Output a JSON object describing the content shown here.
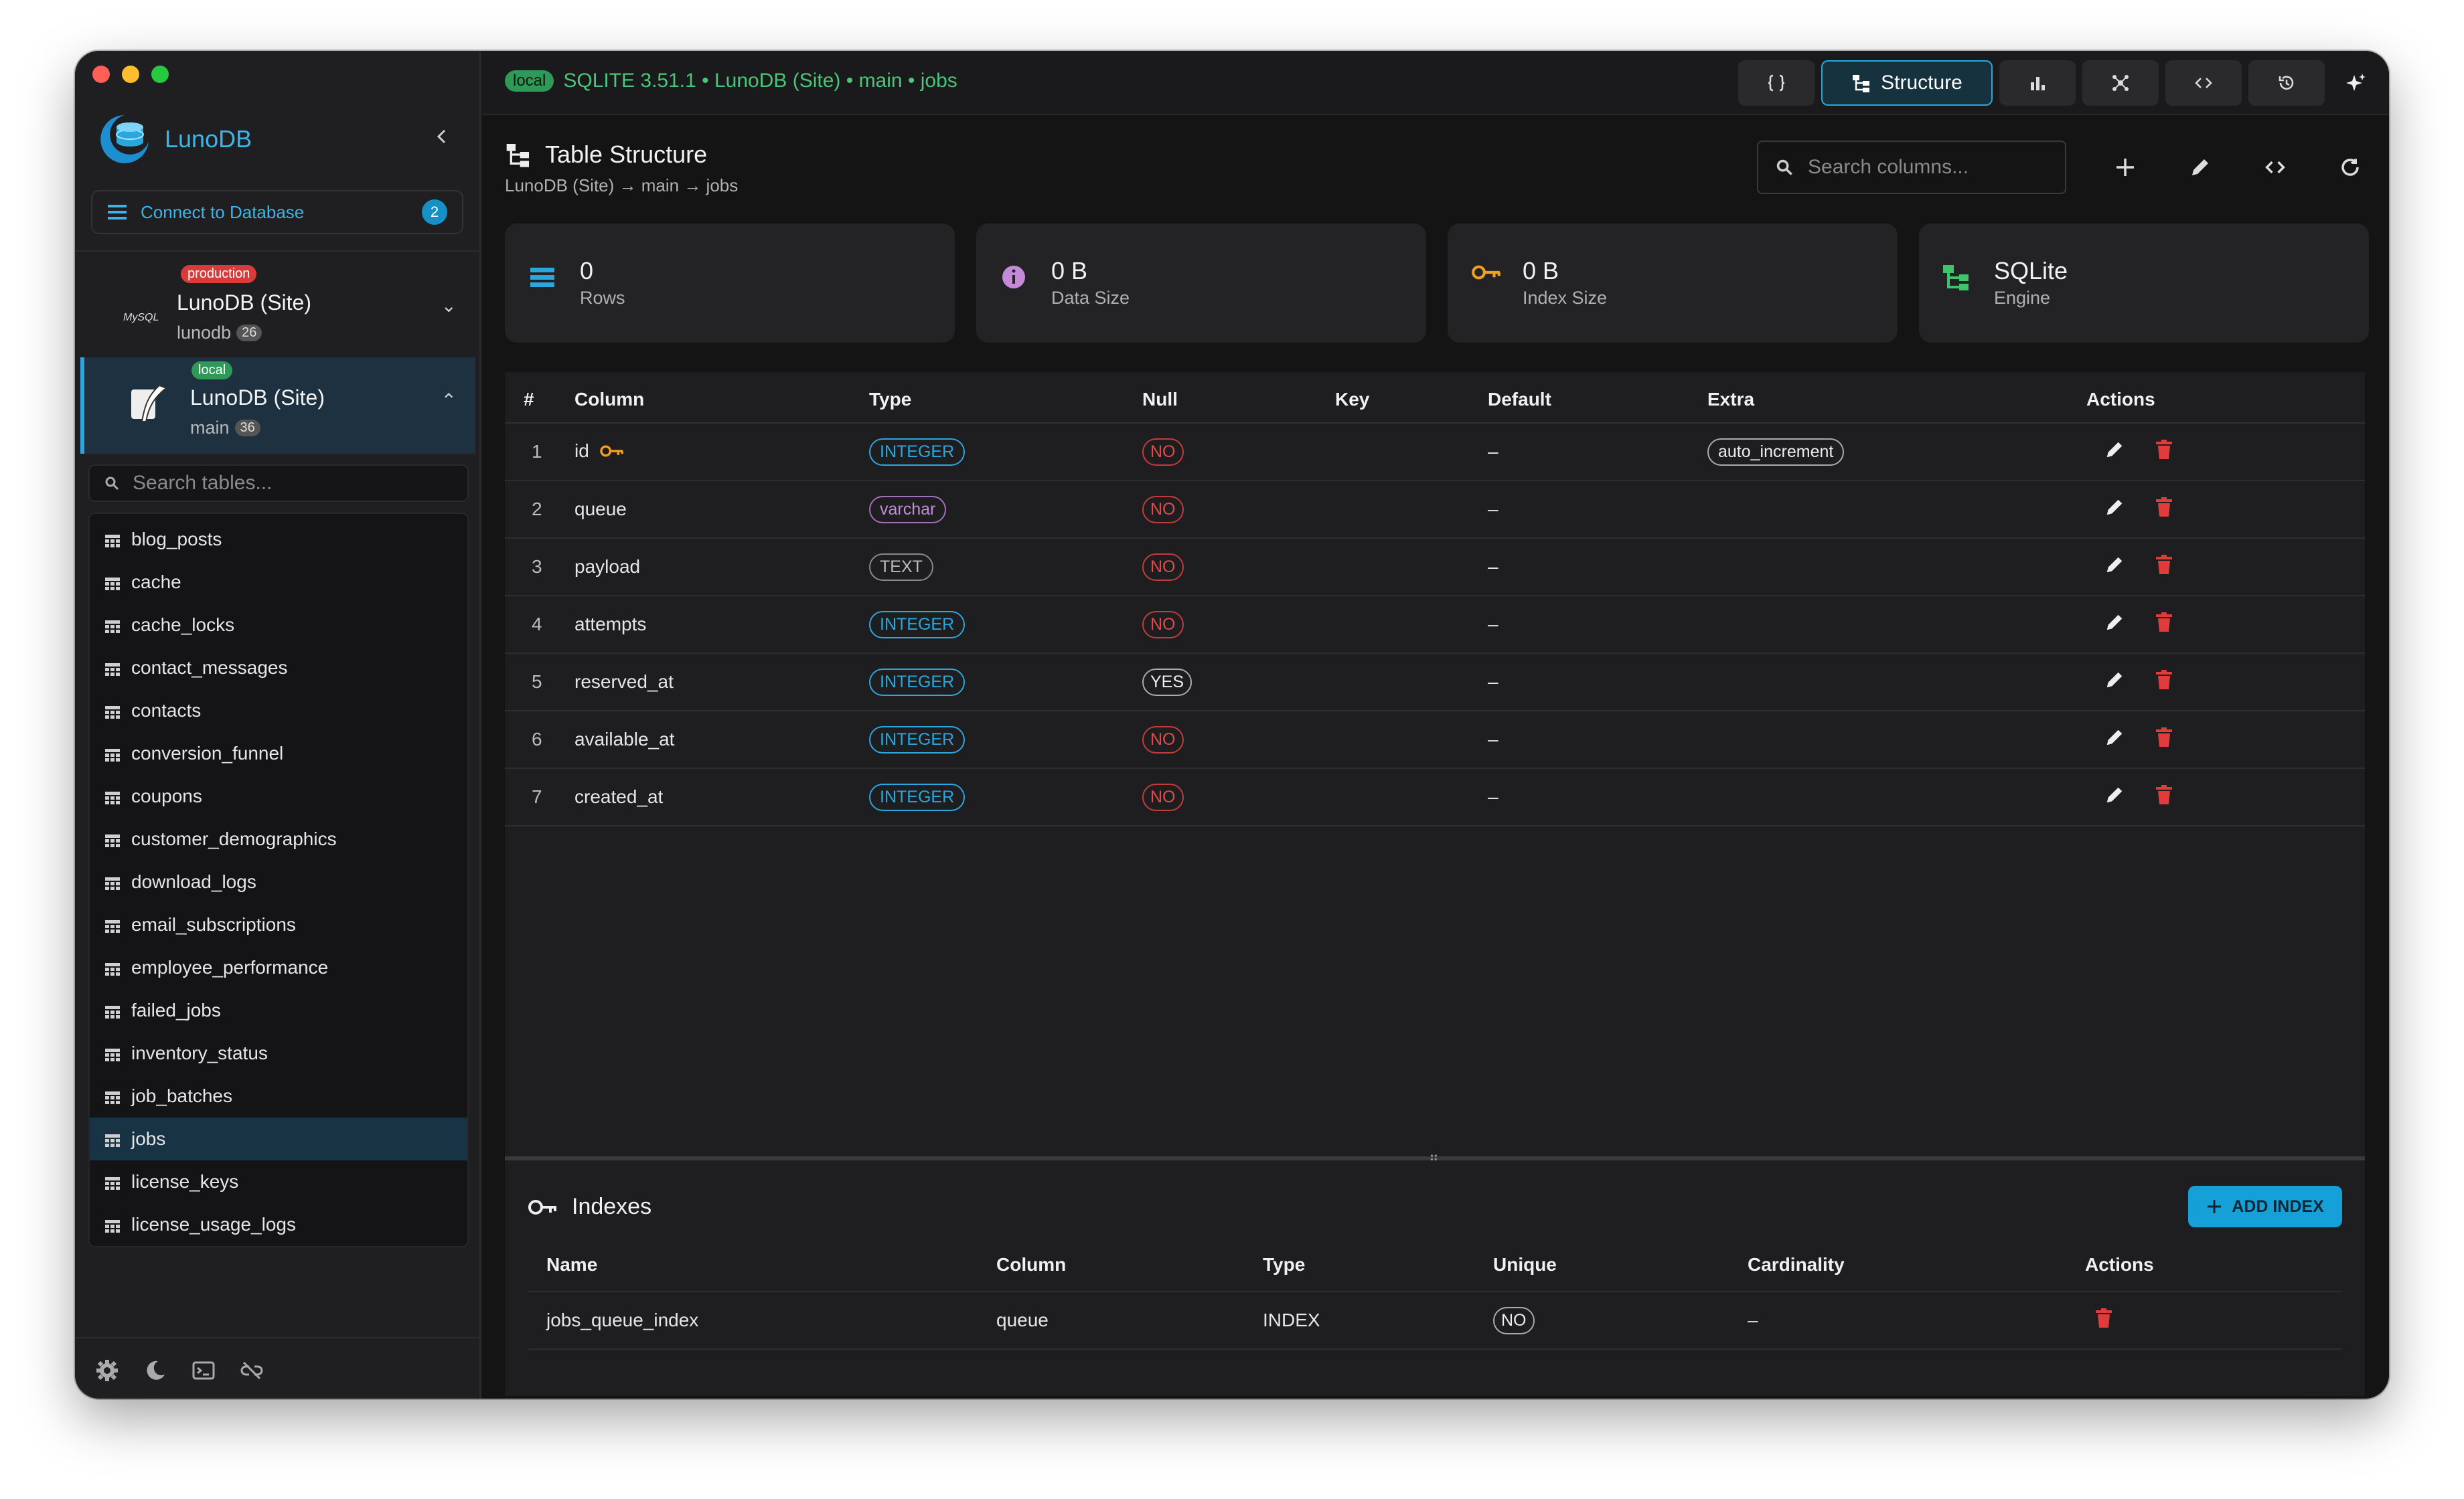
{
  "sidebar": {
    "brand": "LunoDB",
    "connect_label": "Connect to Database",
    "connect_count": "2",
    "connections": [
      {
        "tag": "production",
        "tag_color": "#d93a3a",
        "engine_label": "MySQL",
        "name": "LunoDB (Site)",
        "db": "lunodb",
        "count": "26"
      },
      {
        "tag": "local",
        "tag_color": "#2f9a57",
        "name": "LunoDB (Site)",
        "db": "main",
        "count": "36"
      }
    ],
    "search_placeholder": "Search tables...",
    "tables": [
      "blog_posts",
      "cache",
      "cache_locks",
      "contact_messages",
      "contacts",
      "conversion_funnel",
      "coupons",
      "customer_demographics",
      "download_logs",
      "email_subscriptions",
      "employee_performance",
      "failed_jobs",
      "inventory_status",
      "job_batches",
      "jobs",
      "license_keys",
      "license_usage_logs"
    ],
    "selected_table": "jobs"
  },
  "topbar": {
    "env": "local",
    "path": "SQLITE 3.51.1 • LunoDB (Site) • main • jobs",
    "active_tab": "Structure"
  },
  "page": {
    "title": "Table Structure",
    "breadcrumb": "LunoDB (Site) → main → jobs",
    "search_placeholder": "Search columns..."
  },
  "stats": [
    {
      "value": "0",
      "label": "Rows",
      "icon": "rows-icon",
      "color": "#2aa7df"
    },
    {
      "value": "0 B",
      "label": "Data Size",
      "icon": "info-icon",
      "color": "#c48ad8"
    },
    {
      "value": "0 B",
      "label": "Index Size",
      "icon": "key-icon",
      "color": "#f0a020"
    },
    {
      "value": "SQLite",
      "label": "Engine",
      "icon": "engine-icon",
      "color": "#3ec46d"
    }
  ],
  "columns_table": {
    "headers": [
      "#",
      "Column",
      "Type",
      "Null",
      "Key",
      "Default",
      "Extra",
      "Actions"
    ],
    "rows": [
      {
        "n": "1",
        "name": "id",
        "type": "INTEGER",
        "null": "NO",
        "key": "pk",
        "default": "–",
        "extra": "auto_increment"
      },
      {
        "n": "2",
        "name": "queue",
        "type": "varchar",
        "null": "NO",
        "key": "",
        "default": "–",
        "extra": ""
      },
      {
        "n": "3",
        "name": "payload",
        "type": "TEXT",
        "null": "NO",
        "key": "",
        "default": "–",
        "extra": ""
      },
      {
        "n": "4",
        "name": "attempts",
        "type": "INTEGER",
        "null": "NO",
        "key": "",
        "default": "–",
        "extra": ""
      },
      {
        "n": "5",
        "name": "reserved_at",
        "type": "INTEGER",
        "null": "YES",
        "key": "",
        "default": "–",
        "extra": ""
      },
      {
        "n": "6",
        "name": "available_at",
        "type": "INTEGER",
        "null": "NO",
        "key": "",
        "default": "–",
        "extra": ""
      },
      {
        "n": "7",
        "name": "created_at",
        "type": "INTEGER",
        "null": "NO",
        "key": "",
        "default": "–",
        "extra": ""
      }
    ]
  },
  "indexes": {
    "title": "Indexes",
    "add_label": "ADD INDEX",
    "headers": [
      "Name",
      "Column",
      "Type",
      "Unique",
      "Cardinality",
      "Actions"
    ],
    "rows": [
      {
        "name": "jobs_queue_index",
        "column": "queue",
        "type": "INDEX",
        "unique": "NO",
        "cardinality": "–"
      }
    ]
  }
}
